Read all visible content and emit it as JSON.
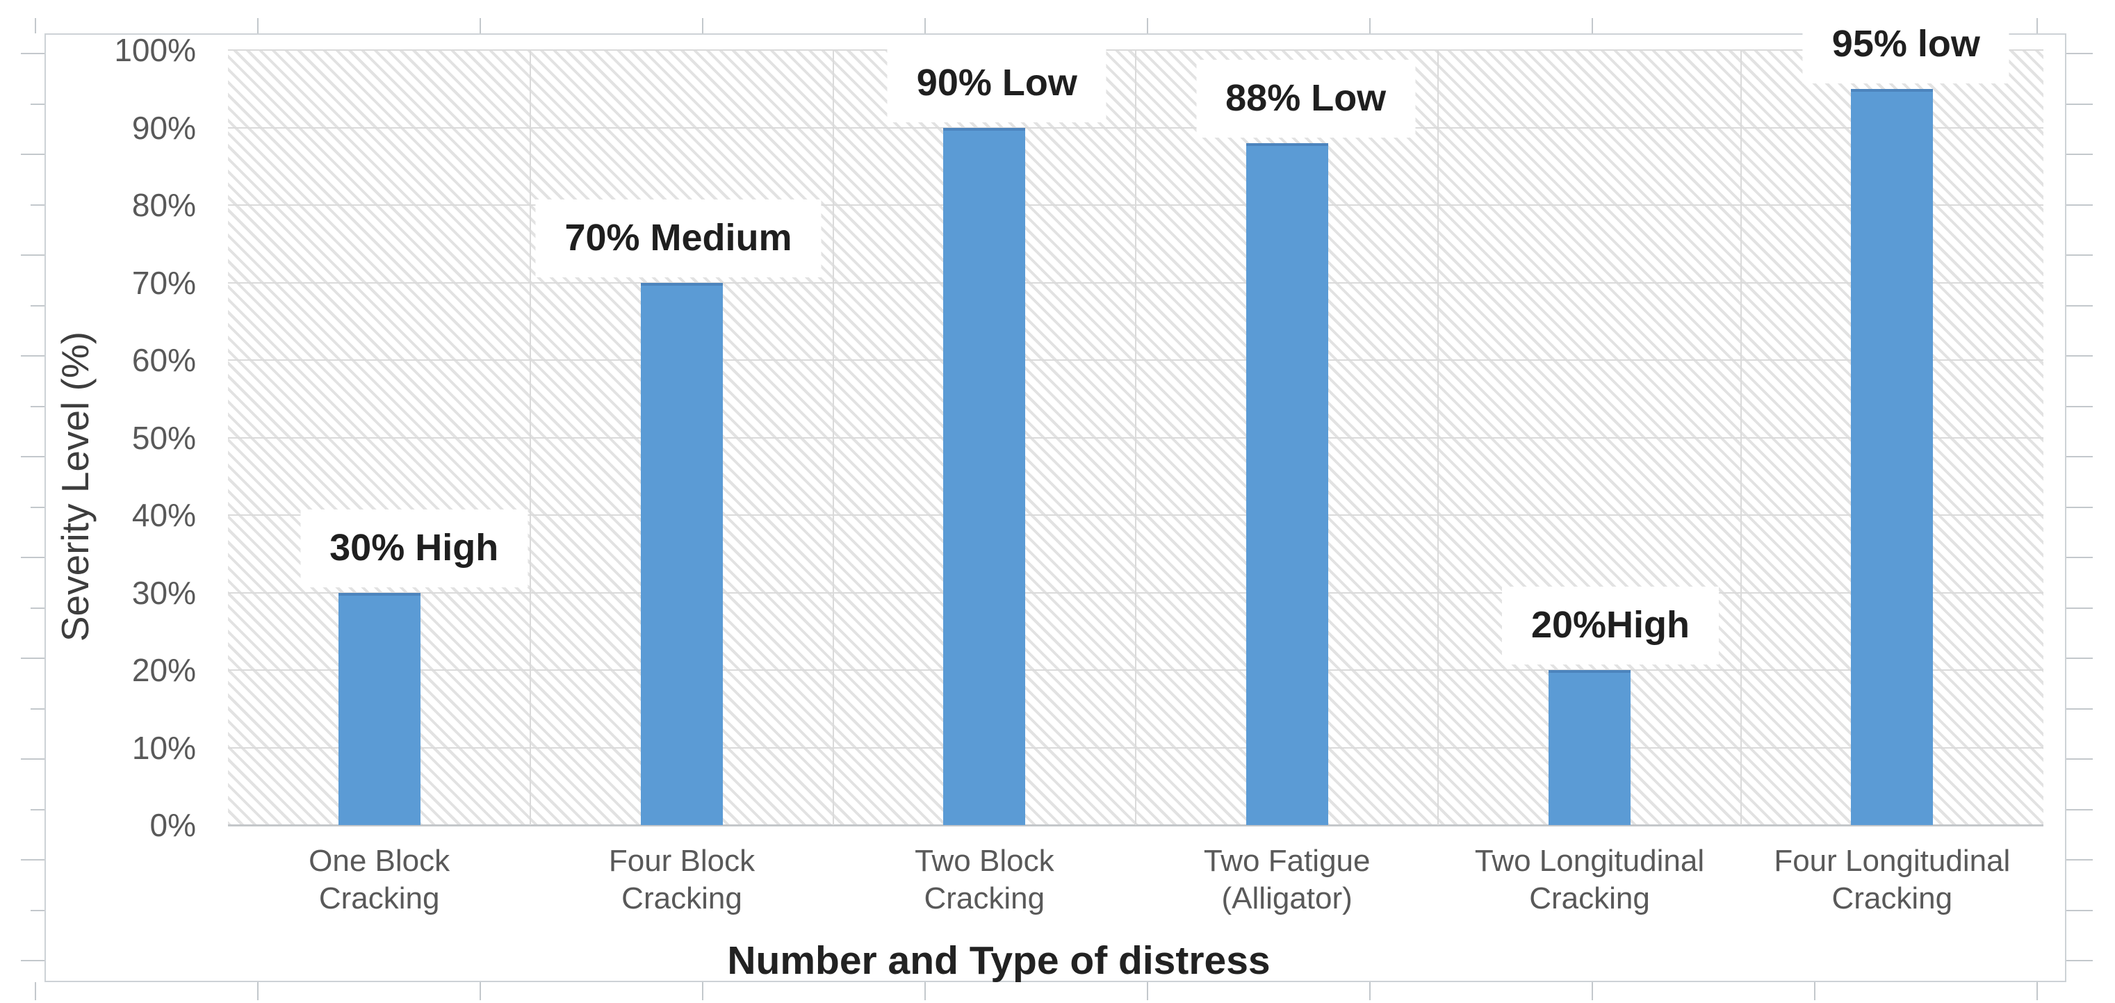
{
  "figure": {
    "kind": "excel-style clustered column chart, photo/scan with outer ruler frame"
  },
  "chart_data": {
    "type": "bar",
    "title": "",
    "xlabel": "Number and Type of distress",
    "ylabel": "Severity Level (%)",
    "categories": [
      "One Block Cracking",
      "Four Block Cracking",
      "Two Block Cracking",
      "Two Fatigue (Alligator)",
      "Two Longitudinal Cracking",
      "Four Longitudinal Cracking"
    ],
    "category_lines": [
      [
        "One Block",
        "Cracking"
      ],
      [
        "Four Block",
        "Cracking"
      ],
      [
        "Two Block",
        "Cracking"
      ],
      [
        "Two Fatigue",
        "(Alligator)"
      ],
      [
        "Two Longitudinal",
        "Cracking"
      ],
      [
        "Four Longitudinal",
        "Cracking"
      ]
    ],
    "values": [
      30,
      70,
      90,
      88,
      20,
      95
    ],
    "bar_labels": [
      "30% High",
      "70% Medium",
      "90% Low",
      "88% Low",
      "20%High",
      "95% low"
    ],
    "y_tick_labels": [
      "0%",
      "10%",
      "20%",
      "30%",
      "40%",
      "50%",
      "60%",
      "70%",
      "80%",
      "90%",
      "100%"
    ],
    "ylim": [
      0,
      100
    ],
    "y_tick_step": 10,
    "grid": true,
    "legend_position": "none",
    "bar_color": "#5b9bd5",
    "bar_top_edge_color": "#4c84bd",
    "plot_background": "white with light downward-diagonal gray hatch",
    "colors": {
      "gridline": "#dadada",
      "tick_label": "#595959",
      "y_axis_title": "#3d3d3d",
      "x_axis_title": "#222222",
      "data_label": "#1f1f1f",
      "frame": "#cdd2d6"
    }
  }
}
